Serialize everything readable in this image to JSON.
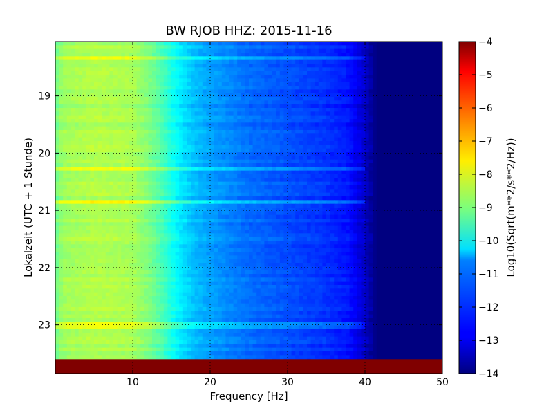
{
  "chart_data": {
    "type": "heatmap",
    "title": "BW RJOB HHZ: 2015-11-16",
    "xlabel": "Frequency [Hz]",
    "ylabel": "Lokalzeit (UTC + 1 Stunde)",
    "xlim": [
      0,
      50
    ],
    "ylim": [
      23.85,
      18.05
    ],
    "xticks": [
      10,
      20,
      30,
      40,
      50
    ],
    "yticks": [
      19,
      20,
      21,
      22,
      23
    ],
    "grid": true,
    "colormap": "jet",
    "colorbar": {
      "label": "Log10(Sqrt(m**2/s**2/Hz))",
      "min": -14,
      "max": -4,
      "ticks": [
        -4,
        -5,
        -6,
        -7,
        -8,
        -9,
        -10,
        -11,
        -12,
        -13,
        -14
      ]
    },
    "spectrum_profile": [
      {
        "freq": 0,
        "value": -9.2
      },
      {
        "freq": 1,
        "value": -8.7
      },
      {
        "freq": 5,
        "value": -8.5
      },
      {
        "freq": 10,
        "value": -8.6
      },
      {
        "freq": 12,
        "value": -9.0
      },
      {
        "freq": 14,
        "value": -9.6
      },
      {
        "freq": 16,
        "value": -10.4
      },
      {
        "freq": 18,
        "value": -10.9
      },
      {
        "freq": 20,
        "value": -11.2
      },
      {
        "freq": 25,
        "value": -11.7
      },
      {
        "freq": 30,
        "value": -12.0
      },
      {
        "freq": 35,
        "value": -12.3
      },
      {
        "freq": 38,
        "value": -12.6
      },
      {
        "freq": 40,
        "value": -13.3
      },
      {
        "freq": 41.5,
        "value": -14.0
      },
      {
        "freq": 50,
        "value": -14.0
      }
    ],
    "horizontal_events": [
      {
        "time": 20.27,
        "value_boost": 1.0
      },
      {
        "time": 20.85,
        "value_boost": 1.2
      },
      {
        "time": 23.0,
        "value_boost": 0.8
      },
      {
        "time": 18.35,
        "value_boost": 0.7
      }
    ],
    "no_data_band": {
      "time_from": 23.6,
      "time_to": 23.85,
      "value": -4
    }
  }
}
